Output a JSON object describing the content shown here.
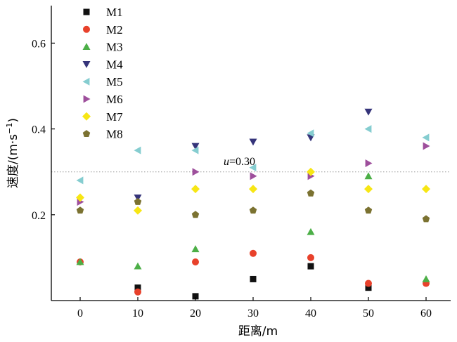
{
  "chart_data": {
    "type": "scatter",
    "xlabel": "距离/m",
    "ylabel_main": "速度/(m·s",
    "ylabel_sup": "−1",
    "ylabel_close": ")",
    "xlim": [
      -5,
      64
    ],
    "ylim": [
      0,
      0.69
    ],
    "xticks": [
      0,
      10,
      20,
      30,
      40,
      50,
      60
    ],
    "xtick_labels": [
      "0",
      "10",
      "20",
      "30",
      "40",
      "50",
      "60"
    ],
    "yticks": [
      0.2,
      0.4,
      0.6
    ],
    "ytick_labels": [
      "0.2",
      "0.4",
      "0.6"
    ],
    "grid": false,
    "legend_position": "top-left",
    "reference_line": {
      "y": 0.3,
      "label_var": "u",
      "label_value": "=0.30",
      "color": "#999999"
    },
    "series": [
      {
        "name": "M1",
        "marker": "square",
        "color": "#111111",
        "points": [
          [
            10,
            0.03
          ],
          [
            20,
            0.01
          ],
          [
            30,
            0.05
          ],
          [
            40,
            0.08
          ],
          [
            50,
            0.03
          ]
        ]
      },
      {
        "name": "M2",
        "marker": "circle",
        "color": "#e8412b",
        "points": [
          [
            0,
            0.09
          ],
          [
            10,
            0.02
          ],
          [
            20,
            0.09
          ],
          [
            30,
            0.11
          ],
          [
            40,
            0.1
          ],
          [
            50,
            0.04
          ],
          [
            60,
            0.04
          ]
        ]
      },
      {
        "name": "M3",
        "marker": "triangle-up",
        "color": "#4caf47",
        "points": [
          [
            0,
            0.09
          ],
          [
            10,
            0.08
          ],
          [
            20,
            0.12
          ],
          [
            40,
            0.16
          ],
          [
            50,
            0.29
          ],
          [
            60,
            0.05
          ]
        ]
      },
      {
        "name": "M4",
        "marker": "triangle-down",
        "color": "#35347a",
        "points": [
          [
            10,
            0.24
          ],
          [
            20,
            0.36
          ],
          [
            30,
            0.37
          ],
          [
            40,
            0.38
          ],
          [
            50,
            0.44
          ]
        ]
      },
      {
        "name": "M5",
        "marker": "triangle-left",
        "color": "#85cdd0",
        "points": [
          [
            0,
            0.28
          ],
          [
            10,
            0.35
          ],
          [
            20,
            0.35
          ],
          [
            30,
            0.31
          ],
          [
            40,
            0.39
          ],
          [
            50,
            0.4
          ],
          [
            60,
            0.38
          ]
        ]
      },
      {
        "name": "M6",
        "marker": "triangle-right",
        "color": "#9e4f9c",
        "points": [
          [
            0,
            0.23
          ],
          [
            20,
            0.3
          ],
          [
            30,
            0.29
          ],
          [
            40,
            0.29
          ],
          [
            50,
            0.32
          ],
          [
            60,
            0.36
          ]
        ]
      },
      {
        "name": "M7",
        "marker": "diamond",
        "color": "#f7e614",
        "points": [
          [
            0,
            0.24
          ],
          [
            10,
            0.21
          ],
          [
            20,
            0.26
          ],
          [
            30,
            0.26
          ],
          [
            40,
            0.3
          ],
          [
            50,
            0.26
          ],
          [
            60,
            0.26
          ]
        ]
      },
      {
        "name": "M8",
        "marker": "pentagon",
        "color": "#7b7231",
        "points": [
          [
            0,
            0.21
          ],
          [
            10,
            0.23
          ],
          [
            20,
            0.2
          ],
          [
            30,
            0.21
          ],
          [
            40,
            0.25
          ],
          [
            50,
            0.21
          ],
          [
            60,
            0.19
          ]
        ]
      }
    ]
  }
}
